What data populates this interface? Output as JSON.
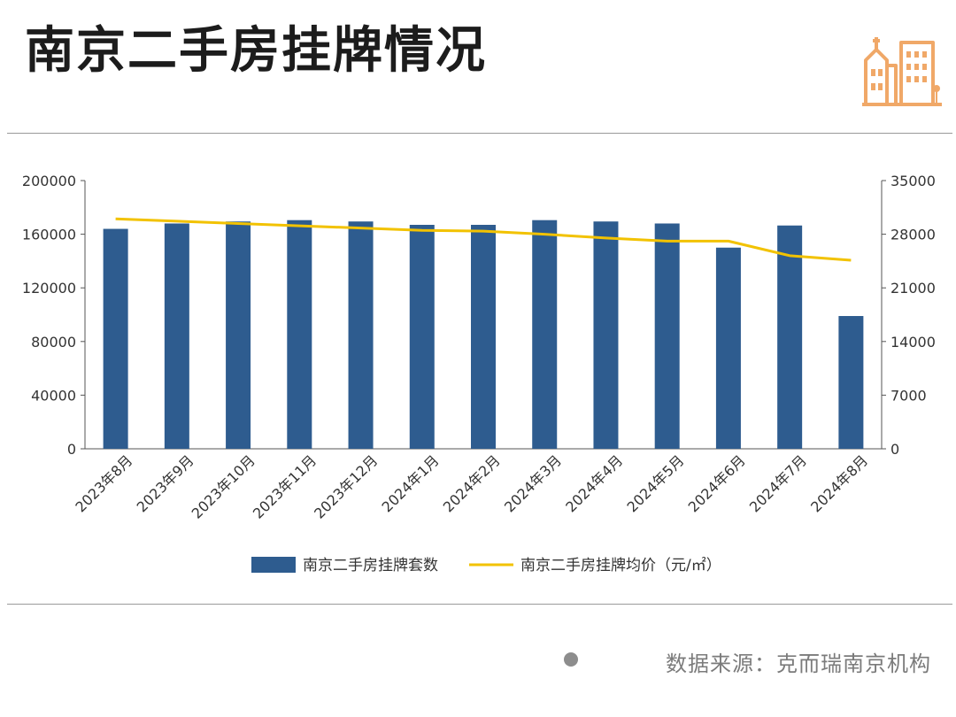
{
  "title": "南京二手房挂牌情况",
  "source": "数据来源：克而瑞南京机构",
  "logo_icon": "city-buildings-icon",
  "colors": {
    "bar": "#2e5c8f",
    "line": "#f2c200",
    "logo": "#f0a868"
  },
  "chart_data": {
    "type": "bar",
    "categories": [
      "2023年8月",
      "2023年9月",
      "2023年10月",
      "2023年11月",
      "2023年12月",
      "2024年1月",
      "2024年2月",
      "2024年3月",
      "2024年4月",
      "2024年5月",
      "2024年6月",
      "2024年7月",
      "2024年8月"
    ],
    "series": [
      {
        "name": "南京二手房挂牌套数",
        "type": "bar",
        "axis": "left",
        "values": [
          164000,
          168000,
          169500,
          170500,
          169500,
          167000,
          167000,
          170500,
          169500,
          168000,
          150000,
          166500,
          99000
        ]
      },
      {
        "name": "南京二手房挂牌均价（元/㎡）",
        "type": "line",
        "axis": "right",
        "values": [
          30000,
          29700,
          29400,
          29100,
          28800,
          28500,
          28400,
          28000,
          27500,
          27100,
          27100,
          25200,
          24600
        ]
      }
    ],
    "y_left": {
      "min": 0,
      "max": 200000,
      "ticks": [
        0,
        40000,
        80000,
        120000,
        160000,
        200000
      ]
    },
    "y_right": {
      "min": 0,
      "max": 35000,
      "ticks": [
        0,
        7000,
        14000,
        21000,
        28000,
        35000
      ]
    },
    "legend": "bottom-center",
    "grid": false
  }
}
